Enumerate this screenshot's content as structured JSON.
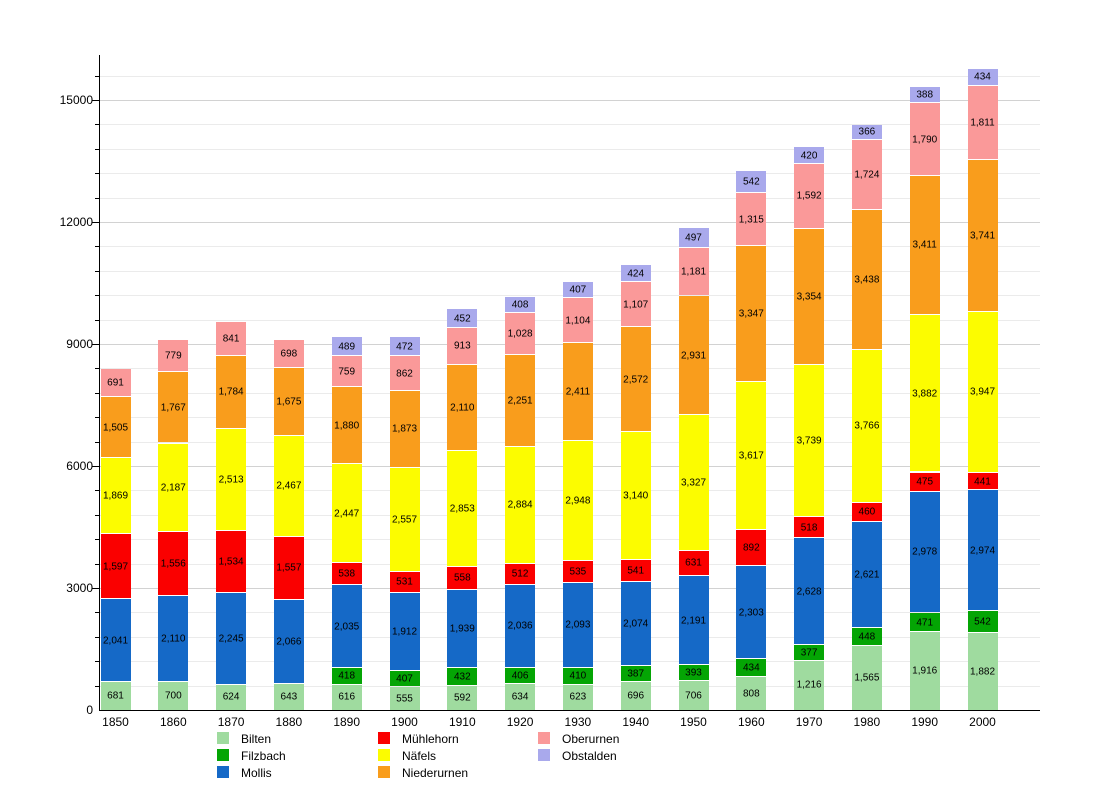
{
  "chart_data": {
    "type": "bar",
    "stacked": true,
    "title": "",
    "xlabel": "",
    "ylabel": "",
    "categories": [
      "1850",
      "1860",
      "1870",
      "1880",
      "1890",
      "1900",
      "1910",
      "1920",
      "1930",
      "1940",
      "1950",
      "1960",
      "1970",
      "1980",
      "1990",
      "2000"
    ],
    "series": [
      {
        "name": "Bilten",
        "color": "#9fdb9f",
        "values": [
          681,
          700,
          624,
          643,
          616,
          555,
          592,
          634,
          623,
          696,
          706,
          808,
          1216,
          1565,
          1916,
          1882
        ]
      },
      {
        "name": "Filzbach",
        "color": "#04a504",
        "values": [
          null,
          null,
          null,
          null,
          418,
          407,
          432,
          406,
          410,
          387,
          393,
          434,
          377,
          448,
          471,
          542
        ]
      },
      {
        "name": "Mollis",
        "color": "#1569c7",
        "values": [
          2041,
          2110,
          2245,
          2066,
          2035,
          1912,
          1939,
          2036,
          2093,
          2074,
          2191,
          2303,
          2628,
          2621,
          2978,
          2974
        ]
      },
      {
        "name": "Mühlehorn",
        "color": "#fa0000",
        "values": [
          1597,
          1556,
          1534,
          1557,
          538,
          531,
          558,
          512,
          535,
          541,
          631,
          892,
          518,
          460,
          475,
          441
        ]
      },
      {
        "name": "Näfels",
        "color": "#fcfc00",
        "values": [
          1869,
          2187,
          2513,
          2467,
          2447,
          2557,
          2853,
          2884,
          2948,
          3140,
          3327,
          3617,
          3739,
          3766,
          3882,
          3947
        ]
      },
      {
        "name": "Niederurnen",
        "color": "#f99d1c",
        "values": [
          1505,
          1767,
          1784,
          1675,
          1880,
          1873,
          2110,
          2251,
          2411,
          2572,
          2931,
          3347,
          3354,
          3438,
          3411,
          3741
        ]
      },
      {
        "name": "Oberurnen",
        "color": "#fa9999",
        "values": [
          691,
          779,
          841,
          698,
          759,
          862,
          913,
          1028,
          1104,
          1107,
          1181,
          1315,
          1592,
          1724,
          1790,
          1811
        ]
      },
      {
        "name": "Obstalden",
        "color": "#a9a9ec",
        "values": [
          null,
          null,
          null,
          null,
          489,
          472,
          452,
          408,
          407,
          424,
          497,
          542,
          420,
          366,
          388,
          434
        ]
      }
    ],
    "y_ticks": [
      0,
      3000,
      6000,
      9000,
      12000,
      15000
    ],
    "ylim": [
      0,
      16100
    ],
    "grid": {
      "minor_step": 600,
      "major_step": 3000,
      "max_line": 15600
    },
    "legend": {
      "position": "bottom",
      "column_series_indices": [
        [
          0,
          1,
          2
        ],
        [
          3,
          4,
          5
        ],
        [
          6,
          7
        ]
      ]
    }
  }
}
